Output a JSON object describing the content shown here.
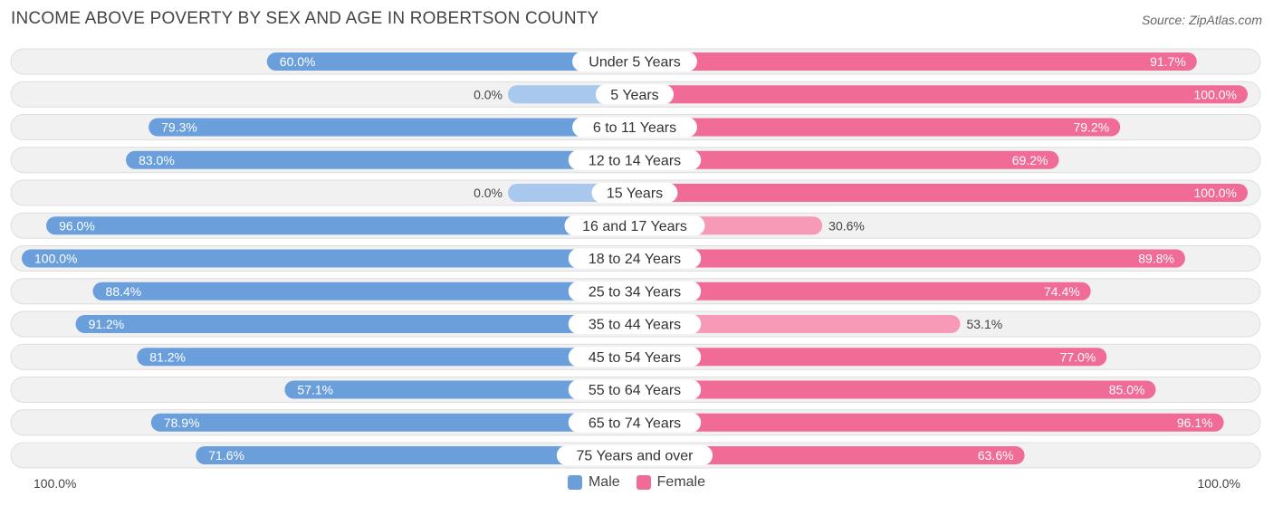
{
  "title": "INCOME ABOVE POVERTY BY SEX AND AGE IN ROBERTSON COUNTY",
  "source": "Source: ZipAtlas.com",
  "axis": {
    "left_label": "100.0%",
    "right_label": "100.0%"
  },
  "legend": [
    {
      "label": "Male",
      "color": "#6a9fdc"
    },
    {
      "label": "Female",
      "color": "#f06b96"
    }
  ],
  "colors": {
    "male_strong": "#6a9fdc",
    "male_light": "#a9c8ed",
    "female_strong": "#f06b96",
    "female_light": "#f79ab8",
    "row_bg": "#f1f1f1",
    "row_border": "#dedede"
  },
  "chart_data": {
    "type": "bar",
    "orientation": "horizontal-diverging",
    "title": "INCOME ABOVE POVERTY BY SEX AND AGE IN ROBERTSON COUNTY",
    "xlim": [
      0,
      100
    ],
    "unit": "%",
    "categories": [
      "Under 5 Years",
      "5 Years",
      "6 to 11 Years",
      "12 to 14 Years",
      "15 Years",
      "16 and 17 Years",
      "18 to 24 Years",
      "25 to 34 Years",
      "35 to 44 Years",
      "45 to 54 Years",
      "55 to 64 Years",
      "65 to 74 Years",
      "75 Years and over"
    ],
    "series": [
      {
        "name": "Male",
        "values": [
          60.0,
          0.0,
          79.3,
          83.0,
          0.0,
          96.0,
          100.0,
          88.4,
          91.2,
          81.2,
          57.1,
          78.9,
          71.6
        ],
        "labels": [
          "60.0%",
          "0.0%",
          "79.3%",
          "83.0%",
          "0.0%",
          "96.0%",
          "100.0%",
          "88.4%",
          "91.2%",
          "81.2%",
          "57.1%",
          "78.9%",
          "71.6%"
        ]
      },
      {
        "name": "Female",
        "values": [
          91.7,
          100.0,
          79.2,
          69.2,
          100.0,
          30.6,
          89.8,
          74.4,
          53.1,
          77.0,
          85.0,
          96.1,
          63.6
        ],
        "labels": [
          "91.7%",
          "100.0%",
          "79.2%",
          "69.2%",
          "100.0%",
          "30.6%",
          "89.8%",
          "74.4%",
          "53.1%",
          "77.0%",
          "85.0%",
          "96.1%",
          "63.6%"
        ]
      }
    ]
  }
}
